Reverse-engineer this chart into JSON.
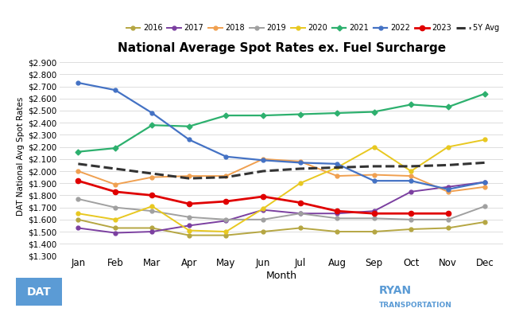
{
  "title": "National Average Spot Rates ex. Fuel Surcharge",
  "xlabel": "Month",
  "ylabel": "DAT National Avg Spot Rates",
  "months": [
    "Jan",
    "Feb",
    "Mar",
    "Apr",
    "May",
    "Jun",
    "Jul",
    "Aug",
    "Sep",
    "Oct",
    "Nov",
    "Dec"
  ],
  "ylim": [
    1.3,
    2.95
  ],
  "yticks": [
    1.3,
    1.4,
    1.5,
    1.6,
    1.7,
    1.8,
    1.9,
    2.0,
    2.1,
    2.2,
    2.3,
    2.4,
    2.5,
    2.6,
    2.7,
    2.8,
    2.9
  ],
  "series": {
    "2016": {
      "values": [
        1.6,
        1.53,
        1.53,
        1.47,
        1.47,
        1.5,
        1.53,
        1.5,
        1.5,
        1.52,
        1.53,
        1.58
      ],
      "color": "#b5a642",
      "lw": 1.4,
      "marker": "o",
      "ms": 3.5,
      "ls": "-"
    },
    "2017": {
      "values": [
        1.53,
        1.49,
        1.5,
        1.55,
        1.59,
        1.68,
        1.65,
        1.65,
        1.67,
        1.83,
        1.87,
        1.91
      ],
      "color": "#7b3fa0",
      "lw": 1.4,
      "marker": "o",
      "ms": 3.5,
      "ls": "-"
    },
    "2018": {
      "values": [
        2.0,
        1.89,
        1.95,
        1.96,
        1.96,
        2.1,
        2.08,
        1.96,
        1.97,
        1.96,
        1.83,
        1.87
      ],
      "color": "#f0a050",
      "lw": 1.4,
      "marker": "o",
      "ms": 3.5,
      "ls": "-"
    },
    "2019": {
      "values": [
        1.77,
        1.7,
        1.67,
        1.62,
        1.6,
        1.6,
        1.65,
        1.61,
        1.61,
        1.6,
        1.6,
        1.71
      ],
      "color": "#a0a0a0",
      "lw": 1.4,
      "marker": "o",
      "ms": 3.5,
      "ls": "-"
    },
    "2020": {
      "values": [
        1.65,
        1.6,
        1.71,
        1.51,
        1.5,
        1.69,
        1.9,
        2.03,
        2.2,
        2.0,
        2.2,
        2.26
      ],
      "color": "#e8c820",
      "lw": 1.4,
      "marker": "o",
      "ms": 3.5,
      "ls": "-"
    },
    "2021": {
      "values": [
        2.16,
        2.19,
        2.38,
        2.37,
        2.46,
        2.46,
        2.47,
        2.48,
        2.49,
        2.55,
        2.53,
        2.64
      ],
      "color": "#2db06e",
      "lw": 1.6,
      "marker": "D",
      "ms": 3.5,
      "ls": "-"
    },
    "2022": {
      "values": [
        2.73,
        2.67,
        2.48,
        2.26,
        2.12,
        2.09,
        2.07,
        2.06,
        1.92,
        1.92,
        1.85,
        1.91
      ],
      "color": "#4472c4",
      "lw": 1.6,
      "marker": "o",
      "ms": 3.5,
      "ls": "-"
    },
    "2023": {
      "values": [
        1.92,
        1.83,
        1.8,
        1.73,
        1.75,
        1.79,
        1.74,
        1.67,
        1.65,
        1.65,
        1.65,
        null
      ],
      "color": "#e00000",
      "lw": 2.0,
      "marker": "o",
      "ms": 4.5,
      "ls": "-"
    },
    "5Y Avg": {
      "values": [
        2.06,
        2.02,
        1.98,
        1.94,
        1.95,
        2.0,
        2.02,
        2.03,
        2.04,
        2.04,
        2.05,
        2.07
      ],
      "color": "#333333",
      "lw": 2.2,
      "marker": "None",
      "ms": 0,
      "ls": "--"
    }
  },
  "legend_order": [
    "2016",
    "2017",
    "2018",
    "2019",
    "2020",
    "2021",
    "2022",
    "2023",
    "5Y Avg"
  ],
  "background_color": "#ffffff",
  "grid_color": "#d8d8d8",
  "dat_color": "#5b9bd5",
  "ryan_color": "#5b9bd5"
}
